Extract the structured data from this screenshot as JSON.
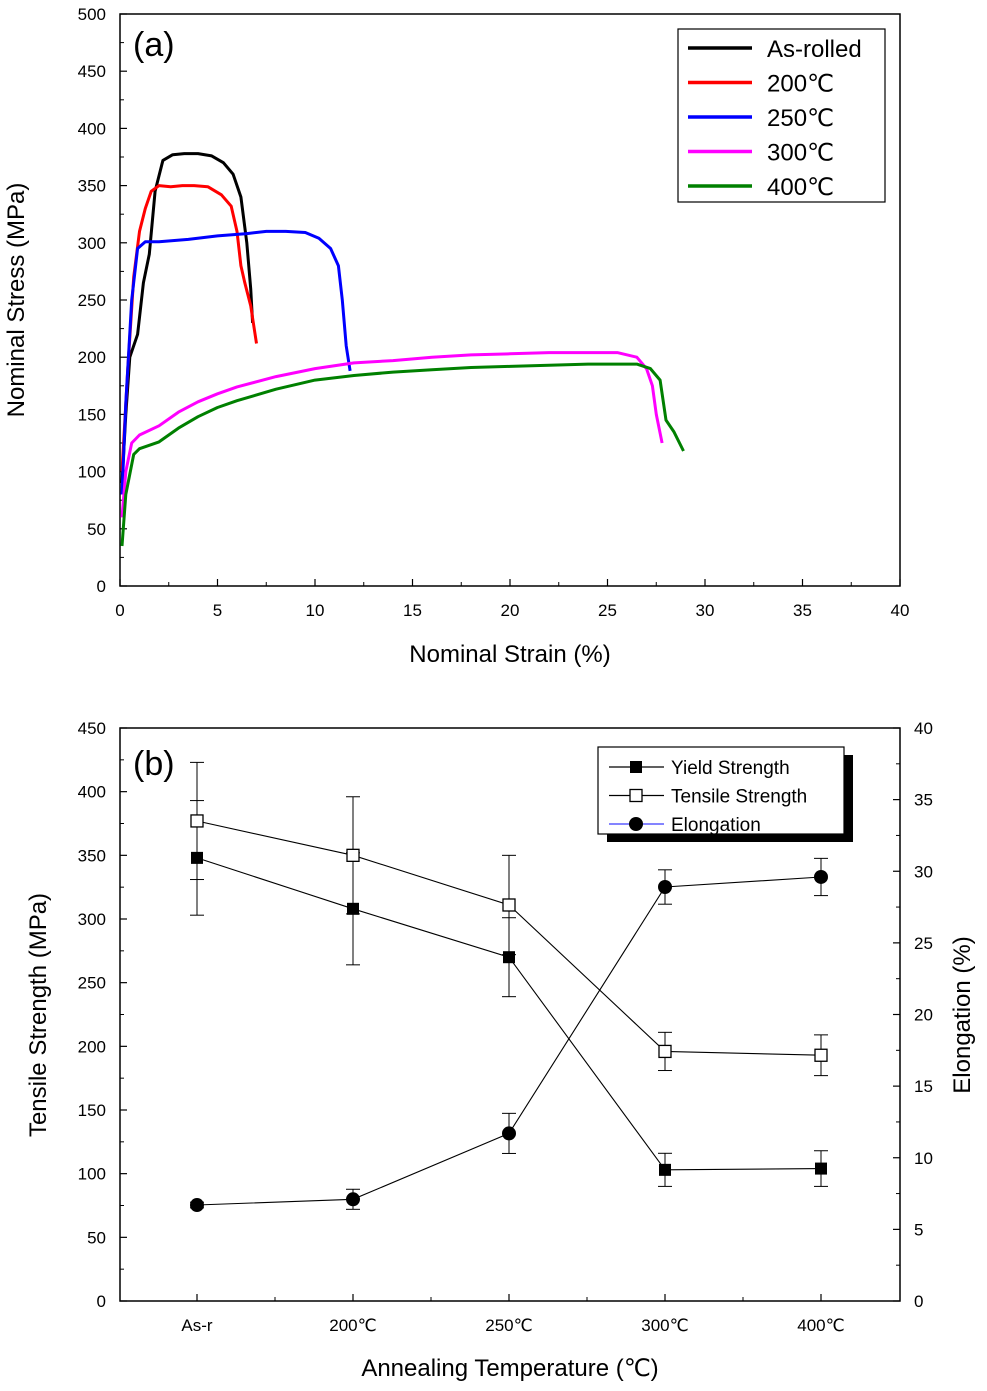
{
  "chart_data": [
    {
      "panel_label": "(a)",
      "type": "line",
      "xlabel": "Nominal Strain (%)",
      "ylabel": "Nominal Stress (MPa)",
      "xlim": [
        0,
        40
      ],
      "ylim": [
        0,
        500
      ],
      "xticks": [
        "0",
        "5",
        "10",
        "15",
        "20",
        "25",
        "30",
        "35",
        "40"
      ],
      "yticks": [
        "0",
        "50",
        "100",
        "150",
        "200",
        "250",
        "300",
        "350",
        "400",
        "450",
        "500"
      ],
      "legend_position": "top-right",
      "series": [
        {
          "name": "As-rolled",
          "color": "#000000",
          "x": [
            0.1,
            0.3,
            0.5,
            0.9,
            1.2,
            1.5,
            1.8,
            2.2,
            2.7,
            3.3,
            4.0,
            4.7,
            5.3,
            5.8,
            6.2,
            6.5,
            6.7,
            6.8
          ],
          "y": [
            90,
            150,
            200,
            220,
            265,
            290,
            345,
            372,
            377,
            378,
            378,
            376,
            370,
            360,
            340,
            300,
            260,
            230
          ]
        },
        {
          "name": "200℃",
          "color": "#ff0000",
          "x": [
            0.1,
            0.4,
            0.7,
            1.0,
            1.3,
            1.6,
            2.0,
            2.6,
            3.2,
            3.8,
            4.5,
            5.2,
            5.7,
            6.0,
            6.2,
            6.4,
            6.7,
            7.0
          ],
          "y": [
            100,
            190,
            270,
            310,
            330,
            345,
            350,
            349,
            350,
            350,
            349,
            342,
            332,
            310,
            280,
            265,
            245,
            212
          ]
        },
        {
          "name": "250℃",
          "color": "#0000ff",
          "x": [
            0.1,
            0.3,
            0.6,
            0.9,
            1.3,
            2.0,
            3.5,
            5.0,
            6.5,
            7.5,
            8.5,
            9.5,
            10.2,
            10.8,
            11.2,
            11.4,
            11.6,
            11.8
          ],
          "y": [
            80,
            160,
            250,
            295,
            301,
            301,
            303,
            306,
            308,
            310,
            310,
            309,
            304,
            295,
            280,
            250,
            210,
            188
          ]
        },
        {
          "name": "300℃",
          "color": "#ff00ff",
          "x": [
            0.1,
            0.3,
            0.6,
            1.0,
            2.0,
            3.0,
            4.0,
            5.0,
            6.0,
            8.0,
            10.0,
            12.0,
            14.0,
            16.0,
            18.0,
            20.0,
            22.0,
            24.0,
            25.5,
            26.5,
            27.0,
            27.3,
            27.5,
            27.8
          ],
          "y": [
            60,
            100,
            125,
            132,
            140,
            152,
            161,
            168,
            174,
            183,
            190,
            195,
            197,
            200,
            202,
            203,
            204,
            204,
            204,
            200,
            190,
            175,
            150,
            125
          ]
        },
        {
          "name": "400℃",
          "color": "#008000",
          "x": [
            0.1,
            0.3,
            0.7,
            1.0,
            2.0,
            3.0,
            4.0,
            5.0,
            6.0,
            8.0,
            10.0,
            12.0,
            14.0,
            16.0,
            18.0,
            20.0,
            22.0,
            24.0,
            25.5,
            26.5,
            27.2,
            27.7,
            28.0,
            28.4,
            28.9
          ],
          "y": [
            35,
            80,
            115,
            120,
            126,
            138,
            148,
            156,
            162,
            172,
            180,
            184,
            187,
            189,
            191,
            192,
            193,
            194,
            194,
            194,
            190,
            180,
            145,
            135,
            118
          ]
        }
      ]
    },
    {
      "panel_label": "(b)",
      "type": "line",
      "xlabel": "Annealing Temperature (℃)",
      "ylabel": "Tensile Strength (MPa)",
      "y2label": "Elongation (%)",
      "categories": [
        "As-r",
        "200℃",
        "250℃",
        "300℃",
        "400℃"
      ],
      "ylim": [
        0,
        450
      ],
      "y2lim": [
        0,
        40
      ],
      "yticks": [
        "0",
        "50",
        "100",
        "150",
        "200",
        "250",
        "300",
        "350",
        "400",
        "450"
      ],
      "y2ticks": [
        "0",
        "5",
        "10",
        "15",
        "20",
        "25",
        "30",
        "35",
        "40"
      ],
      "legend_position": "top-right",
      "series": [
        {
          "name": "Yield Strength",
          "axis": "left",
          "marker": "filled-square",
          "values": [
            348,
            308,
            270,
            103,
            104
          ],
          "errors": [
            45,
            44,
            31,
            13,
            14
          ]
        },
        {
          "name": "Tensile Strength",
          "axis": "left",
          "marker": "open-square",
          "values": [
            377,
            350,
            311,
            196,
            193
          ],
          "errors": [
            46,
            46,
            39,
            15,
            16
          ]
        },
        {
          "name": "Elongation",
          "axis": "right",
          "marker": "filled-circle",
          "values": [
            6.7,
            7.1,
            11.7,
            28.9,
            29.6
          ],
          "errors": [
            0.2,
            0.7,
            1.4,
            1.2,
            1.3
          ]
        }
      ]
    }
  ]
}
